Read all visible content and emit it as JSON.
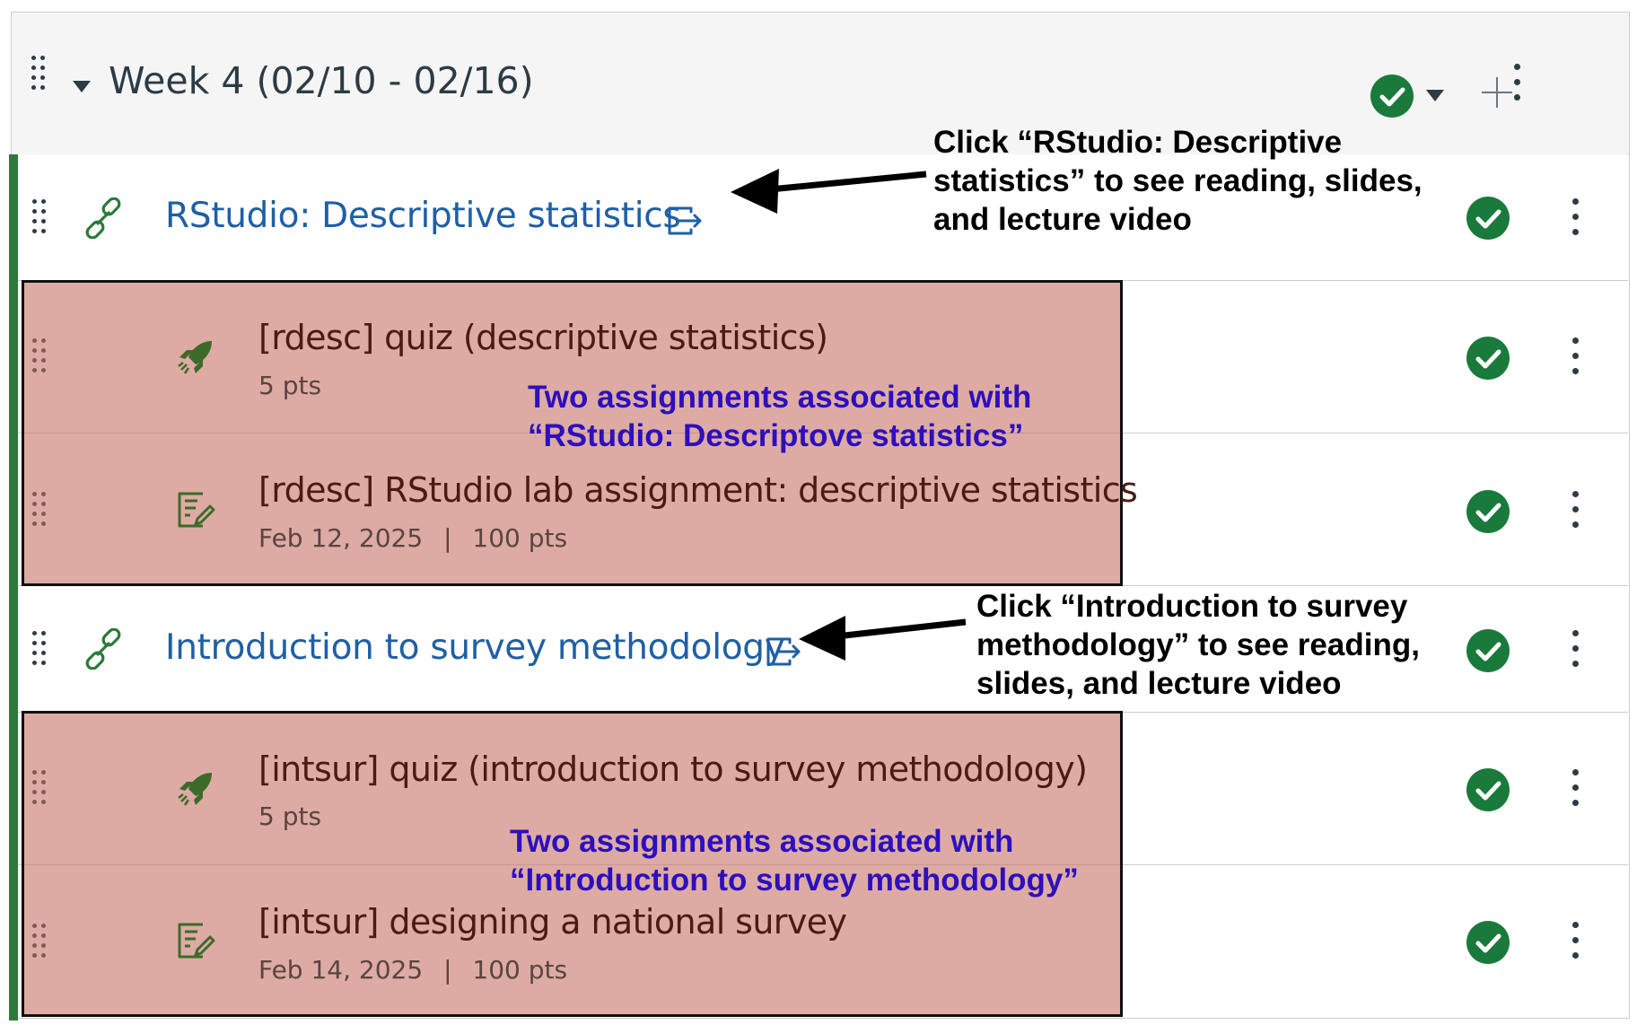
{
  "module": {
    "title": "Week 4 (02/10 - 02/16)",
    "status": "published",
    "icons": [
      "drag-handle-icon",
      "collapse-caret-icon",
      "published-check-icon",
      "dropdown-caret-icon",
      "plus-icon",
      "kebab-menu-icon"
    ]
  },
  "items": [
    {
      "kind": "link",
      "title": "RStudio: Descriptive statistics",
      "icon": "link-icon"
    },
    {
      "kind": "quiz",
      "title": "[rdesc] quiz (descriptive statistics)",
      "meta": "5 pts",
      "icon": "quiz-rocket-icon"
    },
    {
      "kind": "assignment",
      "title": "[rdesc] RStudio lab assignment: descriptive statistics",
      "meta_date": "Feb 12, 2025",
      "meta_sep": "|",
      "meta_pts": "100 pts",
      "icon": "assignment-icon"
    },
    {
      "kind": "link",
      "title": "Introduction to survey methodology",
      "icon": "link-icon"
    },
    {
      "kind": "quiz",
      "title": "[intsur] quiz (introduction to survey methodology)",
      "meta": "5 pts",
      "icon": "quiz-rocket-icon"
    },
    {
      "kind": "assignment",
      "title": "[intsur] designing a national survey",
      "meta_date": "Feb 14, 2025",
      "meta_sep": "|",
      "meta_pts": "100 pts",
      "icon": "assignment-icon"
    }
  ],
  "annotations": {
    "note1": [
      "Click “RStudio: Descriptive",
      "statistics” to see reading, slides,",
      "and lecture video"
    ],
    "note2": [
      "Two assignments associated with",
      "“RStudio: Descriptove statistics”"
    ],
    "note3": [
      "Click “Introduction to survey",
      "methodology” to see reading,",
      "slides, and lecture video"
    ],
    "note4": [
      "Two assignments associated with",
      "“Introduction to survey methodology”"
    ]
  },
  "colors": {
    "accent_green": "#2b7a3b",
    "status_green": "#1a7a3b",
    "link_blue": "#1f5fa5",
    "annotation_blue": "#2d0fbd",
    "highlight": "#dba7a0"
  }
}
